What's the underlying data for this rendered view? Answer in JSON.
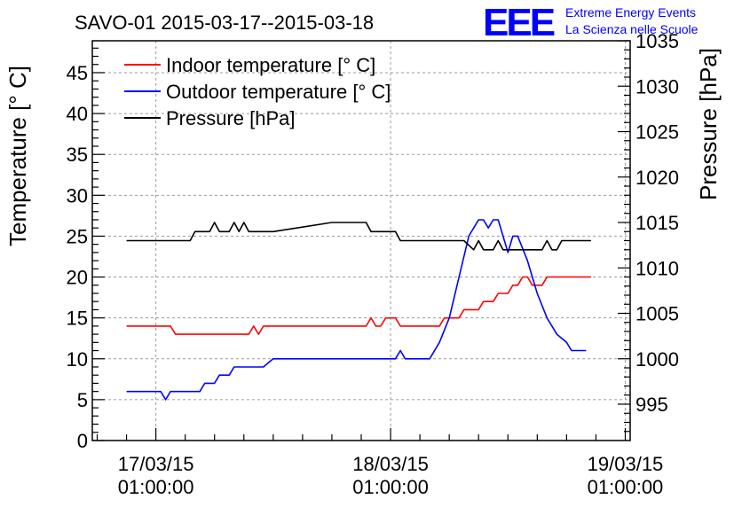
{
  "header": {
    "title": "SAVO-01 2015-03-17--2015-03-18",
    "logo_text": "EEE",
    "logo_line1": "Extreme Energy Events",
    "logo_line2": "La Scienza nelle Scuole",
    "logo_color": "#0000ff"
  },
  "chart_data": {
    "type": "line",
    "title": "SAVO-01 2015-03-17--2015-03-18",
    "xlabel": "",
    "ylabel": "Temperature [° C]",
    "y2label": "Pressure [hPa]",
    "x_unit": "hours since 17/03/15 01:00:00",
    "xlim": [
      -6.5,
      48.5
    ],
    "ylim": [
      0,
      48.9
    ],
    "y2lim": [
      991.0,
      1035.0
    ],
    "grid": true,
    "legend_position": "top-left",
    "x_tick_labels": [
      {
        "x": 0,
        "line1": "17/03/15",
        "line2": "01:00:00"
      },
      {
        "x": 24,
        "line1": "18/03/15",
        "line2": "01:00:00"
      },
      {
        "x": 48,
        "line1": "19/03/15",
        "line2": "01:00:00"
      }
    ],
    "y_ticks": [
      0,
      5,
      10,
      15,
      20,
      25,
      30,
      35,
      40,
      45
    ],
    "y2_ticks": [
      995,
      1000,
      1005,
      1010,
      1015,
      1020,
      1025,
      1030,
      1035
    ],
    "series": [
      {
        "name": "Indoor temperature [° C]",
        "axis": "left",
        "color": "#ff0000",
        "points": [
          [
            -3,
            14
          ],
          [
            1.5,
            14
          ],
          [
            2,
            13
          ],
          [
            9.5,
            13
          ],
          [
            10,
            14
          ],
          [
            10.5,
            13
          ],
          [
            11,
            14
          ],
          [
            21.5,
            14
          ],
          [
            22,
            15
          ],
          [
            22.5,
            14
          ],
          [
            23,
            14
          ],
          [
            23.5,
            15
          ],
          [
            24.5,
            15
          ],
          [
            25,
            14
          ],
          [
            29,
            14
          ],
          [
            29.5,
            15
          ],
          [
            31,
            15
          ],
          [
            31.5,
            16
          ],
          [
            33,
            16
          ],
          [
            33.5,
            17
          ],
          [
            34.5,
            17
          ],
          [
            35,
            18
          ],
          [
            36,
            18
          ],
          [
            36.5,
            19
          ],
          [
            37,
            19
          ],
          [
            37.5,
            20
          ],
          [
            38,
            20
          ],
          [
            38.5,
            19
          ],
          [
            39.5,
            19
          ],
          [
            40,
            20
          ],
          [
            44.5,
            20
          ]
        ]
      },
      {
        "name": "Outdoor temperature [° C]",
        "axis": "left",
        "color": "#0000ff",
        "points": [
          [
            -3,
            6
          ],
          [
            0.5,
            6
          ],
          [
            1,
            5
          ],
          [
            1.5,
            6
          ],
          [
            4.5,
            6
          ],
          [
            5,
            7
          ],
          [
            6,
            7
          ],
          [
            6.5,
            8
          ],
          [
            7.5,
            8
          ],
          [
            8,
            9
          ],
          [
            11,
            9
          ],
          [
            12,
            10
          ],
          [
            24.5,
            10
          ],
          [
            25,
            11
          ],
          [
            25.5,
            10
          ],
          [
            28,
            10
          ],
          [
            29,
            12
          ],
          [
            30,
            15
          ],
          [
            31,
            20
          ],
          [
            32,
            25
          ],
          [
            33,
            27
          ],
          [
            33.5,
            27
          ],
          [
            34,
            26
          ],
          [
            34.5,
            27
          ],
          [
            35,
            27
          ],
          [
            36,
            23
          ],
          [
            36.5,
            25
          ],
          [
            37,
            25
          ],
          [
            38,
            22
          ],
          [
            39,
            18
          ],
          [
            40,
            15
          ],
          [
            41,
            13
          ],
          [
            42,
            12
          ],
          [
            42.5,
            11
          ],
          [
            44,
            11
          ]
        ]
      },
      {
        "name": "Pressure [hPa]",
        "axis": "right",
        "color": "#000000",
        "points": [
          [
            -3,
            1013.0
          ],
          [
            3.5,
            1013.0
          ],
          [
            4,
            1014.0
          ],
          [
            5.5,
            1014.0
          ],
          [
            6,
            1015.0
          ],
          [
            6.5,
            1014.0
          ],
          [
            7.5,
            1014.0
          ],
          [
            8,
            1015.0
          ],
          [
            8.5,
            1014.0
          ],
          [
            9,
            1015.0
          ],
          [
            9.5,
            1014.0
          ],
          [
            12,
            1014.0
          ],
          [
            18,
            1015.0
          ],
          [
            21.5,
            1015.0
          ],
          [
            22,
            1014.0
          ],
          [
            24.5,
            1014.0
          ],
          [
            25,
            1013.0
          ],
          [
            31.5,
            1013.0
          ],
          [
            32.5,
            1012.0
          ],
          [
            33,
            1013.0
          ],
          [
            33.5,
            1012.0
          ],
          [
            34.5,
            1012.0
          ],
          [
            35,
            1013.0
          ],
          [
            35.5,
            1012.0
          ],
          [
            39.5,
            1012.0
          ],
          [
            40,
            1013.0
          ],
          [
            40.5,
            1012.0
          ],
          [
            41,
            1012.0
          ],
          [
            41.5,
            1013.0
          ],
          [
            44.5,
            1013.0
          ]
        ]
      }
    ]
  }
}
